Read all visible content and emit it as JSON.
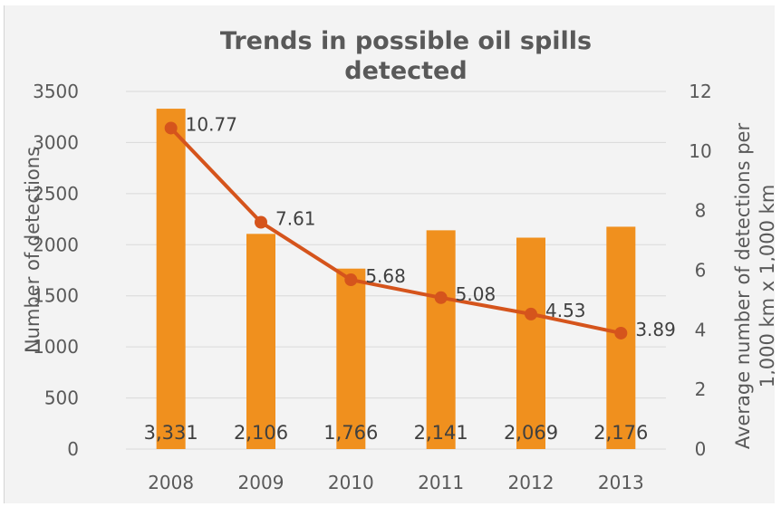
{
  "chart_data": {
    "type": "bar+line",
    "title_lines": [
      "Trends in possible oil spills",
      "detected"
    ],
    "categories": [
      "2008",
      "2009",
      "2010",
      "2011",
      "2012",
      "2013"
    ],
    "ylabel_left": "Number of detections",
    "ylabel_right_lines": [
      "Average number of detections per",
      "1,000 km x 1,000 km"
    ],
    "ylim_left": [
      0,
      3500
    ],
    "ylim_right": [
      0,
      12
    ],
    "yticks_left": [
      "0",
      "500",
      "1000",
      "1500",
      "2000",
      "2500",
      "3000",
      "3500"
    ],
    "yticks_right": [
      "0",
      "2",
      "4",
      "6",
      "8",
      "10",
      "12"
    ],
    "grid": true,
    "series": [
      {
        "type": "bar",
        "axis": "left",
        "values": [
          3331,
          2106,
          1766,
          2141,
          2069,
          2176
        ],
        "labels": [
          "3,331",
          "2,106",
          "1,766",
          "2,141",
          "2,069",
          "2,176"
        ],
        "color": "#f0901e"
      },
      {
        "type": "line",
        "axis": "right",
        "values": [
          10.77,
          7.61,
          5.68,
          5.08,
          4.53,
          3.89
        ],
        "labels": [
          "10.77",
          "7.61",
          "5.68",
          "5.08",
          "4.53",
          "3.89"
        ],
        "color": "#d5541c"
      }
    ]
  }
}
